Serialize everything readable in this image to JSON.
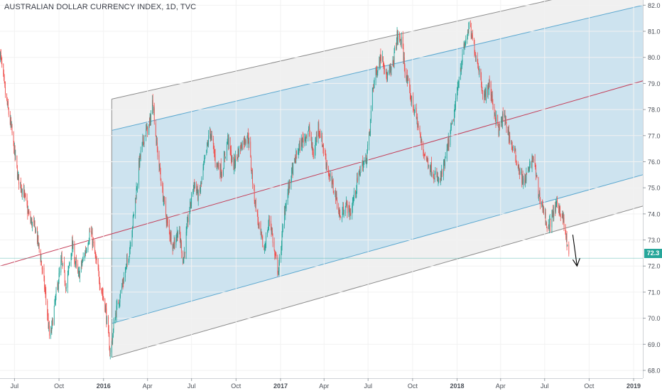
{
  "header": {
    "title": "AUSTRALIAN DOLLAR CURRENCY INDEX, 1D, TVC"
  },
  "current_price": {
    "label": "72.3",
    "value": 72.3
  },
  "colors": {
    "channel_inner_fill": "#c9e1ee",
    "channel_outer_fill": "#ececec",
    "inner_line": "#5aa7cf",
    "outer_line": "#8c8c8c",
    "median_line": "#c43d57",
    "up_candle": "#26a69a",
    "down_candle": "#ef5350",
    "price_line": "#26a69a",
    "arrow": "#000000"
  },
  "chart_data": {
    "type": "candlestick",
    "title": "AUSTRALIAN DOLLAR CURRENCY INDEX, 1D, TVC",
    "ylim": [
      67.7,
      82.2
    ],
    "yticks": [
      68.0,
      69.0,
      70.0,
      71.0,
      72.0,
      73.0,
      74.0,
      75.0,
      76.0,
      77.0,
      78.0,
      79.0,
      80.0,
      81.0,
      82.0
    ],
    "xlim": [
      "2015-06-01",
      "2019-01-20"
    ],
    "xticks": [
      {
        "label": "Jul",
        "date": "2015-07-01"
      },
      {
        "label": "Oct",
        "date": "2015-10-01"
      },
      {
        "label": "2016",
        "date": "2016-01-01",
        "bold": true
      },
      {
        "label": "Apr",
        "date": "2016-04-01"
      },
      {
        "label": "Jul",
        "date": "2016-07-01"
      },
      {
        "label": "Oct",
        "date": "2016-10-01"
      },
      {
        "label": "2017",
        "date": "2017-01-01",
        "bold": true
      },
      {
        "label": "Apr",
        "date": "2017-04-01"
      },
      {
        "label": "Jul",
        "date": "2017-07-01"
      },
      {
        "label": "Oct",
        "date": "2017-10-01"
      },
      {
        "label": "2018",
        "date": "2018-01-01",
        "bold": true
      },
      {
        "label": "Apr",
        "date": "2018-04-01"
      },
      {
        "label": "Jul",
        "date": "2018-07-01"
      },
      {
        "label": "Oct",
        "date": "2018-10-01"
      },
      {
        "label": "2019",
        "date": "2019-01-01",
        "bold": true
      }
    ],
    "price_path": [
      [
        "2015-06-01",
        80.2
      ],
      [
        "2015-06-12",
        78.6
      ],
      [
        "2015-06-25",
        77.2
      ],
      [
        "2015-07-08",
        75.4
      ],
      [
        "2015-07-20",
        74.8
      ],
      [
        "2015-08-01",
        73.8
      ],
      [
        "2015-08-14",
        73.4
      ],
      [
        "2015-08-25",
        72.2
      ],
      [
        "2015-09-05",
        70.6
      ],
      [
        "2015-09-12",
        69.1
      ],
      [
        "2015-09-22",
        70.5
      ],
      [
        "2015-10-06",
        72.2
      ],
      [
        "2015-10-16",
        71.2
      ],
      [
        "2015-10-28",
        72.8
      ],
      [
        "2015-11-10",
        71.6
      ],
      [
        "2015-11-25",
        72.6
      ],
      [
        "2015-12-05",
        73.4
      ],
      [
        "2015-12-20",
        71.8
      ],
      [
        "2016-01-05",
        70.4
      ],
      [
        "2016-01-15",
        68.6
      ],
      [
        "2016-01-25",
        70.1
      ],
      [
        "2016-02-08",
        71.2
      ],
      [
        "2016-02-22",
        72.4
      ],
      [
        "2016-03-05",
        74.2
      ],
      [
        "2016-03-15",
        76.0
      ],
      [
        "2016-03-25",
        77.0
      ],
      [
        "2016-04-05",
        77.4
      ],
      [
        "2016-04-12",
        78.4
      ],
      [
        "2016-04-20",
        76.6
      ],
      [
        "2016-05-02",
        74.8
      ],
      [
        "2016-05-12",
        73.6
      ],
      [
        "2016-05-24",
        72.8
      ],
      [
        "2016-06-04",
        73.4
      ],
      [
        "2016-06-14",
        72.2
      ],
      [
        "2016-06-24",
        73.8
      ],
      [
        "2016-07-06",
        75.2
      ],
      [
        "2016-07-16",
        74.6
      ],
      [
        "2016-07-28",
        76.0
      ],
      [
        "2016-08-08",
        77.2
      ],
      [
        "2016-08-20",
        76.0
      ],
      [
        "2016-09-02",
        75.6
      ],
      [
        "2016-09-14",
        76.9
      ],
      [
        "2016-09-25",
        75.8
      ],
      [
        "2016-10-06",
        76.4
      ],
      [
        "2016-10-16",
        76.8
      ],
      [
        "2016-10-26",
        77.0
      ],
      [
        "2016-11-06",
        74.9
      ],
      [
        "2016-11-18",
        73.4
      ],
      [
        "2016-11-28",
        72.6
      ],
      [
        "2016-12-10",
        73.9
      ],
      [
        "2016-12-20",
        72.4
      ],
      [
        "2016-12-28",
        71.8
      ],
      [
        "2017-01-10",
        74.2
      ],
      [
        "2017-01-22",
        75.4
      ],
      [
        "2017-02-05",
        76.4
      ],
      [
        "2017-02-18",
        76.9
      ],
      [
        "2017-03-01",
        77.2
      ],
      [
        "2017-03-10",
        76.2
      ],
      [
        "2017-03-20",
        77.4
      ],
      [
        "2017-04-01",
        76.4
      ],
      [
        "2017-04-12",
        75.4
      ],
      [
        "2017-04-24",
        74.8
      ],
      [
        "2017-05-05",
        73.8
      ],
      [
        "2017-05-15",
        74.4
      ],
      [
        "2017-05-25",
        74.0
      ],
      [
        "2017-06-06",
        75.0
      ],
      [
        "2017-06-16",
        75.8
      ],
      [
        "2017-06-26",
        76.0
      ],
      [
        "2017-07-05",
        77.2
      ],
      [
        "2017-07-10",
        78.8
      ],
      [
        "2017-07-20",
        79.6
      ],
      [
        "2017-07-30",
        80.2
      ],
      [
        "2017-08-08",
        79.2
      ],
      [
        "2017-08-20",
        79.6
      ],
      [
        "2017-08-30",
        80.8
      ],
      [
        "2017-09-08",
        80.6
      ],
      [
        "2017-09-18",
        79.2
      ],
      [
        "2017-09-28",
        78.4
      ],
      [
        "2017-10-10",
        77.6
      ],
      [
        "2017-10-20",
        76.6
      ],
      [
        "2017-11-01",
        76.0
      ],
      [
        "2017-11-12",
        75.6
      ],
      [
        "2017-11-25",
        75.2
      ],
      [
        "2017-12-05",
        75.8
      ],
      [
        "2017-12-15",
        76.8
      ],
      [
        "2017-12-26",
        77.8
      ],
      [
        "2018-01-06",
        79.4
      ],
      [
        "2018-01-16",
        80.4
      ],
      [
        "2018-01-26",
        81.2
      ],
      [
        "2018-02-05",
        80.4
      ],
      [
        "2018-02-15",
        79.6
      ],
      [
        "2018-02-26",
        78.4
      ],
      [
        "2018-03-08",
        79.0
      ],
      [
        "2018-03-18",
        78.0
      ],
      [
        "2018-03-28",
        77.2
      ],
      [
        "2018-04-08",
        77.8
      ],
      [
        "2018-04-18",
        77.0
      ],
      [
        "2018-04-28",
        76.4
      ],
      [
        "2018-05-08",
        75.8
      ],
      [
        "2018-05-18",
        75.2
      ],
      [
        "2018-05-28",
        75.6
      ],
      [
        "2018-06-08",
        76.2
      ],
      [
        "2018-06-18",
        74.8
      ],
      [
        "2018-06-28",
        74.2
      ],
      [
        "2018-07-08",
        73.4
      ],
      [
        "2018-07-18",
        74.0
      ],
      [
        "2018-07-28",
        74.4
      ],
      [
        "2018-08-08",
        73.8
      ],
      [
        "2018-08-14",
        73.1
      ],
      [
        "2018-08-20",
        72.3
      ]
    ],
    "channel": {
      "start_date": "2016-01-18",
      "end_date": "2019-01-20",
      "top_outer": [
        78.4,
        83.0
      ],
      "top_inner": [
        77.2,
        82.0
      ],
      "median": [
        73.6,
        79.1
      ],
      "bottom_inner": [
        69.8,
        75.5
      ],
      "bottom_outer": [
        68.5,
        74.3
      ]
    },
    "median_extension": {
      "start_date": "2015-06-01",
      "start_value": 72.0
    },
    "arrow": {
      "date": "2018-09-06",
      "from_value": 73.2,
      "to_value": 72.0
    }
  }
}
